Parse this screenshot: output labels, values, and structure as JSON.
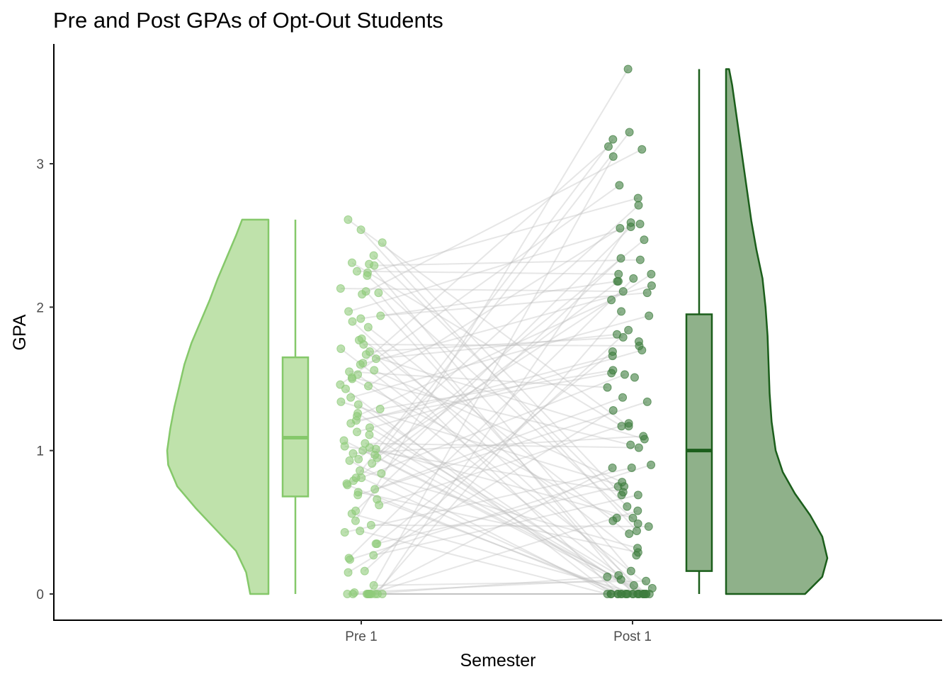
{
  "chart_data": {
    "type": "raincloud",
    "title": "Pre and Post GPAs of Opt-Out Students",
    "xlabel": "Semester",
    "ylabel": "GPA",
    "categories": [
      "Pre 1",
      "Post 1"
    ],
    "ylim": [
      -0.18,
      3.82
    ],
    "y_ticks": [
      "0",
      "1",
      "2",
      "3"
    ],
    "grid": false,
    "colors": {
      "pre_fill": "#bfe2ab",
      "pre_line": "#85c86a",
      "pre_point": "#8fcb7a",
      "post_fill": "#8fb18a",
      "post_line": "#1b5e1b",
      "post_point": "#3e7d3e",
      "pair_line": "#bdbdbd"
    },
    "series": [
      {
        "name": "Pre 1",
        "boxplot": {
          "min": 0.0,
          "q1": 0.68,
          "median": 1.09,
          "q3": 1.65,
          "max": 2.61
        },
        "density": [
          [
            0.0,
            0.18
          ],
          [
            0.15,
            0.22
          ],
          [
            0.3,
            0.32
          ],
          [
            0.45,
            0.52
          ],
          [
            0.6,
            0.72
          ],
          [
            0.75,
            0.9
          ],
          [
            0.9,
            0.99
          ],
          [
            1.0,
            1.0
          ],
          [
            1.15,
            0.97
          ],
          [
            1.3,
            0.93
          ],
          [
            1.45,
            0.88
          ],
          [
            1.6,
            0.83
          ],
          [
            1.75,
            0.76
          ],
          [
            1.9,
            0.67
          ],
          [
            2.05,
            0.58
          ],
          [
            2.2,
            0.5
          ],
          [
            2.35,
            0.41
          ],
          [
            2.5,
            0.32
          ],
          [
            2.61,
            0.26
          ]
        ],
        "points": [
          0.0,
          0.0,
          0.0,
          0.0,
          0.0,
          0.0,
          0.0,
          0.0,
          0.0,
          0.0,
          0.0,
          0.01,
          0.06,
          0.15,
          0.16,
          0.24,
          0.25,
          0.27,
          0.35,
          0.35,
          0.43,
          0.44,
          0.48,
          0.51,
          0.56,
          0.58,
          0.62,
          0.66,
          0.69,
          0.71,
          0.73,
          0.76,
          0.77,
          0.79,
          0.81,
          0.81,
          0.84,
          0.86,
          0.91,
          0.93,
          0.94,
          0.95,
          0.97,
          0.98,
          1.0,
          1.01,
          1.02,
          1.03,
          1.05,
          1.07,
          1.11,
          1.13,
          1.16,
          1.19,
          1.21,
          1.24,
          1.26,
          1.29,
          1.32,
          1.34,
          1.37,
          1.43,
          1.45,
          1.46,
          1.5,
          1.51,
          1.53,
          1.55,
          1.56,
          1.6,
          1.61,
          1.64,
          1.67,
          1.69,
          1.71,
          1.74,
          1.77,
          1.78,
          1.86,
          1.9,
          1.92,
          1.94,
          1.97,
          2.09,
          2.1,
          2.11,
          2.13,
          2.22,
          2.24,
          2.25,
          2.29,
          2.3,
          2.31,
          2.36,
          2.45,
          2.54,
          2.61
        ]
      },
      {
        "name": "Post 1",
        "boxplot": {
          "min": 0.0,
          "q1": 0.16,
          "median": 1.0,
          "q3": 1.95,
          "max": 3.66
        },
        "density": [
          [
            0.0,
            0.78
          ],
          [
            0.12,
            0.95
          ],
          [
            0.25,
            1.0
          ],
          [
            0.4,
            0.95
          ],
          [
            0.55,
            0.83
          ],
          [
            0.7,
            0.68
          ],
          [
            0.85,
            0.56
          ],
          [
            1.0,
            0.49
          ],
          [
            1.2,
            0.45
          ],
          [
            1.4,
            0.43
          ],
          [
            1.6,
            0.42
          ],
          [
            1.8,
            0.41
          ],
          [
            2.0,
            0.39
          ],
          [
            2.2,
            0.36
          ],
          [
            2.4,
            0.3
          ],
          [
            2.6,
            0.25
          ],
          [
            2.8,
            0.21
          ],
          [
            3.0,
            0.17
          ],
          [
            3.2,
            0.13
          ],
          [
            3.4,
            0.09
          ],
          [
            3.55,
            0.06
          ],
          [
            3.66,
            0.03
          ]
        ],
        "points": [
          0.0,
          0.0,
          0.0,
          0.0,
          0.0,
          0.0,
          0.0,
          0.0,
          0.0,
          0.0,
          0.0,
          0.0,
          0.0,
          0.0,
          0.0,
          0.0,
          0.0,
          0.0,
          0.0,
          0.0,
          0.0,
          0.0,
          0.04,
          0.06,
          0.09,
          0.1,
          0.12,
          0.13,
          0.16,
          0.27,
          0.29,
          0.32,
          0.42,
          0.44,
          0.47,
          0.49,
          0.51,
          0.53,
          0.53,
          0.58,
          0.61,
          0.69,
          0.69,
          0.71,
          0.75,
          0.75,
          0.78,
          0.88,
          0.88,
          0.9,
          1.02,
          1.04,
          1.08,
          1.1,
          1.17,
          1.17,
          1.19,
          1.28,
          1.34,
          1.37,
          1.44,
          1.51,
          1.53,
          1.54,
          1.56,
          1.66,
          1.69,
          1.7,
          1.73,
          1.76,
          1.79,
          1.81,
          1.84,
          1.94,
          1.97,
          2.05,
          2.1,
          2.11,
          2.15,
          2.18,
          2.18,
          2.2,
          2.23,
          2.23,
          2.33,
          2.34,
          2.47,
          2.55,
          2.56,
          2.58,
          2.59,
          2.71,
          2.76,
          2.85,
          3.05,
          3.1,
          3.12,
          3.17,
          3.22,
          3.66
        ]
      }
    ]
  }
}
